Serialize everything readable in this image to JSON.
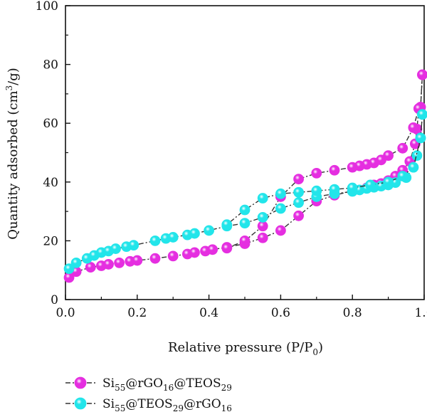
{
  "chart_data": {
    "type": "scatter",
    "title": "",
    "xlabel": "Relative pressure (P/P0)",
    "xlabel_parts": {
      "main": "Relative pressure (P/P",
      "sub": "0",
      "end": ")"
    },
    "ylabel": "Quantity adsorbed (cm3/g)",
    "ylabel_parts": {
      "main": "Quantity adsorbed (cm",
      "sup": "3",
      "end": "/g)"
    },
    "xlim": [
      0.0,
      1.0
    ],
    "ylim": [
      0,
      100
    ],
    "xticks": [
      "0.0",
      "0.2",
      "0.4",
      "0.6",
      "0.8",
      "1.0"
    ],
    "yticks": [
      "0",
      "20",
      "40",
      "60",
      "80",
      "100"
    ],
    "legend_position": "bottom-left",
    "series": [
      {
        "name": "Si55@rGO16@TEOS29",
        "name_parts": [
          [
            "Si",
            ""
          ],
          [
            "55",
            "sub"
          ],
          [
            "@rGO",
            ""
          ],
          [
            "16",
            "sub"
          ],
          [
            "@TEOS",
            ""
          ],
          [
            "29",
            "sub"
          ]
        ],
        "color": "#e52ee0",
        "adsorption": [
          [
            0.01,
            7.5
          ],
          [
            0.03,
            9.5
          ],
          [
            0.07,
            11
          ],
          [
            0.1,
            11.5
          ],
          [
            0.12,
            12
          ],
          [
            0.15,
            12.5
          ],
          [
            0.18,
            13
          ],
          [
            0.2,
            13.3
          ],
          [
            0.25,
            14
          ],
          [
            0.3,
            14.8
          ],
          [
            0.34,
            15.5
          ],
          [
            0.36,
            16
          ],
          [
            0.39,
            16.5
          ],
          [
            0.41,
            17
          ],
          [
            0.45,
            17.8
          ],
          [
            0.5,
            19
          ],
          [
            0.55,
            21
          ],
          [
            0.6,
            23.5
          ],
          [
            0.65,
            28.5
          ],
          [
            0.7,
            33.5
          ],
          [
            0.75,
            35.5
          ],
          [
            0.8,
            37
          ],
          [
            0.84,
            38
          ],
          [
            0.86,
            39
          ],
          [
            0.88,
            39.5
          ],
          [
            0.9,
            40.5
          ],
          [
            0.92,
            42
          ],
          [
            0.94,
            44
          ],
          [
            0.96,
            47
          ],
          [
            0.975,
            53
          ],
          [
            0.98,
            58
          ],
          [
            0.985,
            65
          ],
          [
            0.99,
            65.5
          ],
          [
            0.995,
            76.5
          ]
        ],
        "desorption": [
          [
            0.995,
            76.5
          ],
          [
            0.99,
            65.5
          ],
          [
            0.985,
            65
          ],
          [
            0.97,
            58.5
          ],
          [
            0.94,
            51.5
          ],
          [
            0.9,
            49
          ],
          [
            0.88,
            47.5
          ],
          [
            0.86,
            46.5
          ],
          [
            0.84,
            46
          ],
          [
            0.82,
            45.5
          ],
          [
            0.8,
            45
          ],
          [
            0.75,
            44
          ],
          [
            0.7,
            43
          ],
          [
            0.65,
            41
          ],
          [
            0.6,
            35
          ],
          [
            0.55,
            25
          ],
          [
            0.5,
            20
          ],
          [
            0.45,
            17.5
          ]
        ]
      },
      {
        "name": "Si55@TEOS29@rGO16",
        "name_parts": [
          [
            "Si",
            ""
          ],
          [
            "55",
            "sub"
          ],
          [
            "@TEOS",
            ""
          ],
          [
            "29",
            "sub"
          ],
          [
            "@rGO",
            ""
          ],
          [
            "16",
            "sub"
          ]
        ],
        "color": "#22e5ea",
        "adsorption": [
          [
            0.01,
            10.5
          ],
          [
            0.03,
            12.5
          ],
          [
            0.06,
            14
          ],
          [
            0.08,
            15
          ],
          [
            0.1,
            16
          ],
          [
            0.12,
            16.5
          ],
          [
            0.14,
            17.3
          ],
          [
            0.17,
            18
          ],
          [
            0.19,
            18.5
          ],
          [
            0.25,
            20
          ],
          [
            0.28,
            20.8
          ],
          [
            0.3,
            21.2
          ],
          [
            0.34,
            22
          ],
          [
            0.36,
            22.5
          ],
          [
            0.4,
            23.5
          ],
          [
            0.45,
            25
          ],
          [
            0.5,
            26
          ],
          [
            0.55,
            28
          ],
          [
            0.6,
            31
          ],
          [
            0.65,
            33
          ],
          [
            0.7,
            35
          ],
          [
            0.75,
            36
          ],
          [
            0.8,
            36.8
          ],
          [
            0.82,
            37.3
          ],
          [
            0.84,
            37.8
          ],
          [
            0.86,
            38.2
          ],
          [
            0.88,
            38.6
          ],
          [
            0.9,
            39
          ],
          [
            0.92,
            39.8
          ],
          [
            0.95,
            41.5
          ],
          [
            0.97,
            45
          ],
          [
            0.98,
            49
          ],
          [
            0.99,
            55
          ],
          [
            0.995,
            63
          ]
        ],
        "desorption": [
          [
            0.995,
            63
          ],
          [
            0.99,
            55
          ],
          [
            0.97,
            45
          ],
          [
            0.94,
            42
          ],
          [
            0.9,
            40
          ],
          [
            0.85,
            39
          ],
          [
            0.8,
            38
          ],
          [
            0.75,
            37.5
          ],
          [
            0.7,
            37
          ],
          [
            0.65,
            36.5
          ],
          [
            0.6,
            36
          ],
          [
            0.55,
            34.5
          ],
          [
            0.5,
            30.5
          ],
          [
            0.45,
            25.5
          ]
        ]
      }
    ]
  }
}
